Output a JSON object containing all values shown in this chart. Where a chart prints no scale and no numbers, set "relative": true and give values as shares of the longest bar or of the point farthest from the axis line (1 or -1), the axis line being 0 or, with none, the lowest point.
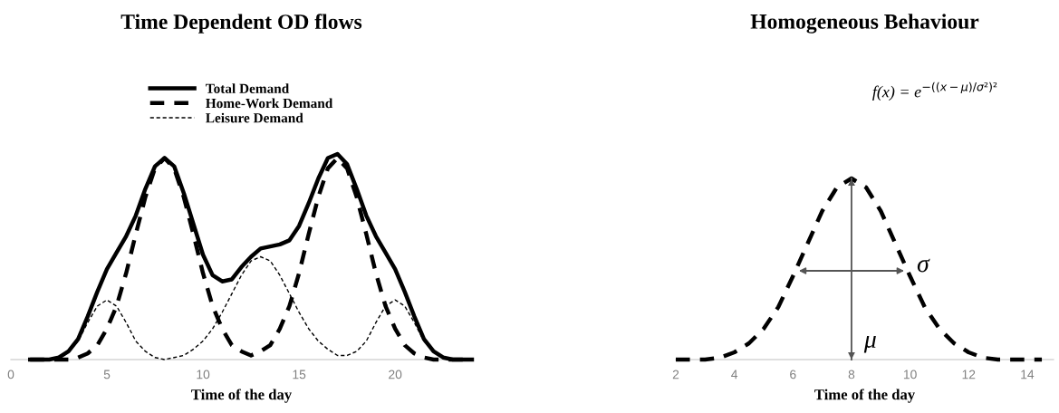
{
  "chart_data": [
    {
      "type": "line",
      "title": "Time Dependent OD flows",
      "xlabel": "Time of the day",
      "relative": true,
      "xlim": [
        0,
        24
      ],
      "xticks": [
        0,
        5,
        10,
        15,
        20
      ],
      "grid": false,
      "legend": "top",
      "marker": "none",
      "x": [
        1,
        1.5,
        2,
        2.5,
        3,
        3.5,
        4,
        4.5,
        5,
        5.5,
        6,
        6.5,
        7,
        7.5,
        8,
        8.5,
        9,
        9.5,
        10,
        10.5,
        11,
        11.5,
        12,
        12.5,
        13,
        13.5,
        14,
        14.5,
        15,
        15.5,
        16,
        16.5,
        17,
        17.5,
        18,
        18.5,
        19,
        19.5,
        20,
        20.5,
        21,
        21.5,
        22,
        22.5,
        23,
        23.5,
        24
      ],
      "series": [
        {
          "name": "Total Demand",
          "color": "#000000",
          "line_style": "solid",
          "values": [
            0,
            0,
            0,
            0.01,
            0.04,
            0.1,
            0.21,
            0.33,
            0.44,
            0.52,
            0.6,
            0.7,
            0.83,
            0.94,
            0.98,
            0.94,
            0.81,
            0.66,
            0.51,
            0.41,
            0.38,
            0.39,
            0.45,
            0.5,
            0.54,
            0.55,
            0.56,
            0.58,
            0.65,
            0.76,
            0.88,
            0.98,
            1.0,
            0.95,
            0.83,
            0.7,
            0.6,
            0.52,
            0.44,
            0.33,
            0.21,
            0.1,
            0.04,
            0.01,
            0,
            0,
            0
          ]
        },
        {
          "name": "Home-Work Demand",
          "color": "#000000",
          "line_style": "dashed",
          "values": [
            0,
            0,
            0,
            0,
            0,
            0.01,
            0.03,
            0.07,
            0.15,
            0.26,
            0.42,
            0.61,
            0.79,
            0.93,
            0.98,
            0.93,
            0.79,
            0.61,
            0.42,
            0.26,
            0.15,
            0.07,
            0.04,
            0.02,
            0.04,
            0.07,
            0.15,
            0.26,
            0.42,
            0.61,
            0.79,
            0.93,
            0.98,
            0.93,
            0.79,
            0.61,
            0.42,
            0.26,
            0.15,
            0.07,
            0.03,
            0.01,
            0,
            0,
            0,
            0,
            0
          ]
        },
        {
          "name": "Leisure Demand",
          "color": "#000000",
          "line_style": "dotted",
          "values": [
            0,
            0,
            0,
            0.01,
            0.04,
            0.09,
            0.18,
            0.26,
            0.29,
            0.26,
            0.18,
            0.09,
            0.04,
            0.01,
            0,
            0.01,
            0.02,
            0.05,
            0.09,
            0.15,
            0.23,
            0.32,
            0.41,
            0.48,
            0.5,
            0.48,
            0.41,
            0.32,
            0.23,
            0.15,
            0.09,
            0.05,
            0.02,
            0.02,
            0.04,
            0.09,
            0.18,
            0.26,
            0.29,
            0.26,
            0.18,
            0.09,
            0.04,
            0.01,
            0,
            0,
            0
          ]
        }
      ]
    },
    {
      "type": "line",
      "title": "Homogeneous Behaviour",
      "xlabel": "Time of the day",
      "relative": true,
      "xlim": [
        2,
        14.9
      ],
      "xticks": [
        2,
        4,
        6,
        8,
        10,
        12,
        14
      ],
      "grid": false,
      "legend": false,
      "marker": "none",
      "x": [
        2,
        2.5,
        3,
        3.5,
        4,
        4.5,
        5,
        5.5,
        6,
        6.5,
        7,
        7.5,
        8,
        8.5,
        9,
        9.5,
        10,
        10.5,
        11,
        11.5,
        12,
        12.5,
        13,
        13.5,
        14,
        14.5
      ],
      "series": [
        {
          "color": "#000000",
          "line_style": "dashed",
          "values": [
            0,
            0,
            0,
            0.01,
            0.04,
            0.09,
            0.17,
            0.29,
            0.46,
            0.64,
            0.82,
            0.95,
            1,
            0.95,
            0.82,
            0.64,
            0.46,
            0.29,
            0.17,
            0.09,
            0.04,
            0.01,
            0,
            0,
            0,
            0
          ]
        }
      ],
      "ref_lines": [
        {
          "axis": "x",
          "value": 8,
          "label": "μ",
          "color": "#555555"
        }
      ],
      "annotations": [
        "f(x) = e$^{−((x−μ)/σ²)²}$",
        {
          "text": "σ",
          "x": 9.8,
          "y": 0.49
        }
      ]
    }
  ]
}
